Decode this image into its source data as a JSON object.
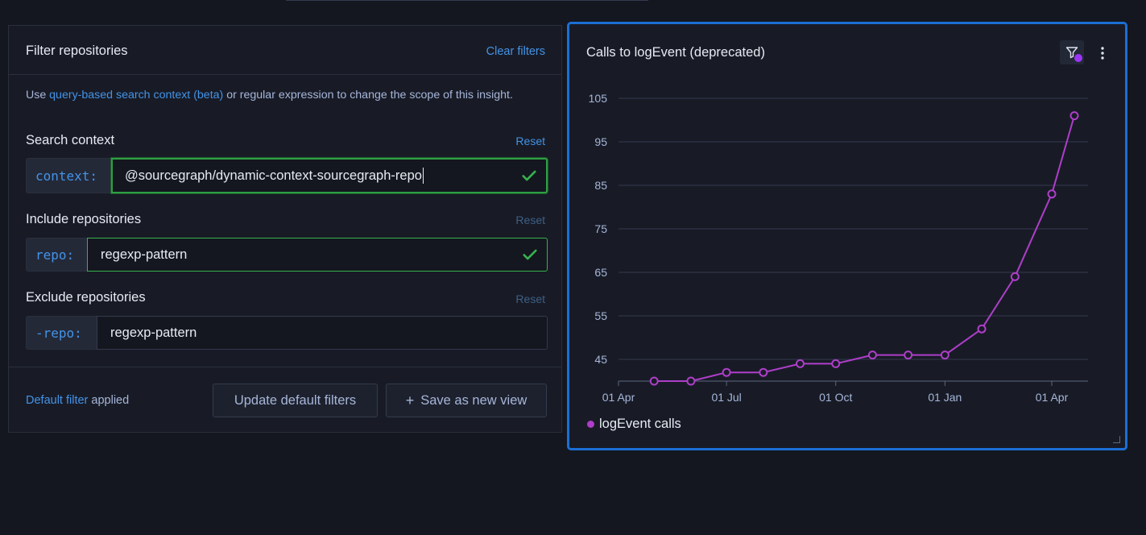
{
  "filter_panel": {
    "title": "Filter repositories",
    "clear_label": "Clear filters",
    "description": {
      "prefix": "Use ",
      "link": "query-based search context (beta)",
      "suffix": " or regular expression to change the scope of this insight."
    },
    "search_context": {
      "label": "Search context",
      "reset": "Reset",
      "prefix": "context:",
      "value": "@sourcegraph/dynamic-context-sourcegraph-repo"
    },
    "include": {
      "label": "Include repositories",
      "reset": "Reset",
      "prefix": "repo:",
      "value": "regexp-pattern"
    },
    "exclude": {
      "label": "Exclude repositories",
      "reset": "Reset",
      "prefix": "-repo:",
      "value": "regexp-pattern"
    },
    "footer": {
      "default_link": "Default filter",
      "default_suffix": " applied",
      "update_button": "Update default filters",
      "save_button": "Save as new view"
    }
  },
  "chart_card": {
    "title": "Calls to logEvent (deprecated)",
    "accent_color": "#1b6fd6"
  },
  "chart_data": {
    "type": "line",
    "title": "Calls to logEvent (deprecated)",
    "ylim": [
      40,
      108
    ],
    "y_ticks": [
      45,
      55,
      65,
      75,
      85,
      95,
      105
    ],
    "x_ticks": [
      {
        "label": "01 Apr",
        "date": "2021-04-01"
      },
      {
        "label": "01 Jul",
        "date": "2021-07-01"
      },
      {
        "label": "01 Oct",
        "date": "2021-10-01"
      },
      {
        "label": "01 Jan",
        "date": "2022-01-01"
      },
      {
        "label": "01 Apr",
        "date": "2022-04-01"
      }
    ],
    "grid": true,
    "legend_position": "bottom-left",
    "series": [
      {
        "name": "logEvent calls",
        "color": "#ae3ec9",
        "points": [
          {
            "x": "2021-05-01",
            "y": 40
          },
          {
            "x": "2021-06-01",
            "y": 40
          },
          {
            "x": "2021-07-01",
            "y": 42
          },
          {
            "x": "2021-08-01",
            "y": 42
          },
          {
            "x": "2021-09-01",
            "y": 44
          },
          {
            "x": "2021-10-01",
            "y": 44
          },
          {
            "x": "2021-11-01",
            "y": 46
          },
          {
            "x": "2021-12-01",
            "y": 46
          },
          {
            "x": "2022-01-01",
            "y": 46
          },
          {
            "x": "2022-02-01",
            "y": 52
          },
          {
            "x": "2022-03-01",
            "y": 64
          },
          {
            "x": "2022-04-01",
            "y": 83
          },
          {
            "x": "2022-04-20",
            "y": 101
          }
        ]
      }
    ]
  }
}
